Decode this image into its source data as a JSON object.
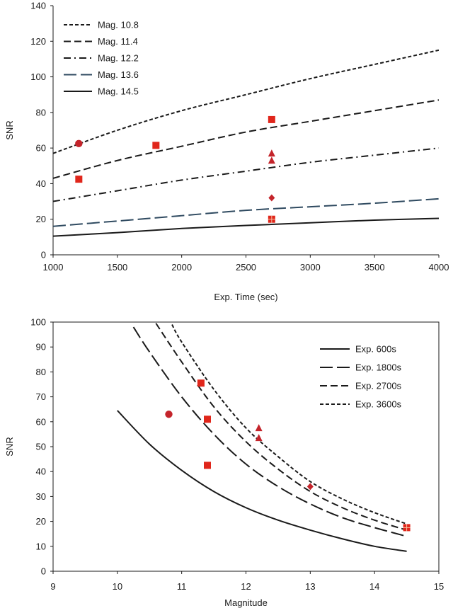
{
  "colors": {
    "marker": "#e0261b",
    "marker_dark": "#c4242b",
    "axis": "#1a1a1a",
    "series_top_long_dash": "#2f4a60"
  },
  "chart_data": [
    {
      "type": "line",
      "title": "",
      "xlabel": "Exp. Time (sec)",
      "ylabel": "SNR",
      "xlim": [
        1000,
        4000
      ],
      "ylim": [
        0,
        140
      ],
      "xticks": [
        "1000",
        "1500",
        "2000",
        "2500",
        "3000",
        "3500",
        "4000"
      ],
      "yticks": [
        "0",
        "20",
        "40",
        "60",
        "80",
        "100",
        "120",
        "140"
      ],
      "grid": false,
      "legend_position": "top-left",
      "series": [
        {
          "name": "Mag. 10.8",
          "dash": "short-dash",
          "x": [
            1000,
            1500,
            2000,
            2500,
            3000,
            3500,
            4000
          ],
          "y": [
            57,
            70,
            81,
            90,
            99,
            107,
            115
          ]
        },
        {
          "name": "Mag. 11.4",
          "dash": "dash",
          "x": [
            1000,
            1500,
            2000,
            2500,
            3000,
            3500,
            4000
          ],
          "y": [
            43,
            53,
            61,
            69,
            75,
            81,
            87
          ]
        },
        {
          "name": "Mag. 12.2",
          "dash": "dash-dot",
          "x": [
            1000,
            1500,
            2000,
            2500,
            3000,
            3500,
            4000
          ],
          "y": [
            30,
            36,
            42,
            47,
            52,
            56,
            60
          ]
        },
        {
          "name": "Mag. 13.6",
          "dash": "long-dash",
          "x": [
            1000,
            1500,
            2000,
            2500,
            3000,
            3500,
            4000
          ],
          "y": [
            16,
            19,
            22,
            25,
            27,
            29,
            31.5
          ]
        },
        {
          "name": "Mag. 14.5",
          "dash": "solid",
          "x": [
            1000,
            1500,
            2000,
            2500,
            3000,
            3500,
            4000
          ],
          "y": [
            10.5,
            12.5,
            14.8,
            16.5,
            18,
            19.5,
            20.5
          ]
        }
      ],
      "markers": [
        {
          "shape": "circle",
          "x": 1200,
          "y": 62.5
        },
        {
          "shape": "square",
          "x": 1200,
          "y": 42.5
        },
        {
          "shape": "square",
          "x": 1800,
          "y": 61.5
        },
        {
          "shape": "square",
          "x": 2700,
          "y": 76
        },
        {
          "shape": "triangle",
          "x": 2700,
          "y": 57
        },
        {
          "shape": "triangle",
          "x": 2700,
          "y": 53
        },
        {
          "shape": "diamond",
          "x": 2700,
          "y": 32
        },
        {
          "shape": "square-cross",
          "x": 2700,
          "y": 20
        }
      ]
    },
    {
      "type": "line",
      "title": "",
      "xlabel": "Magnitude",
      "ylabel": "SNR",
      "xlim": [
        9,
        15
      ],
      "ylim": [
        0,
        100
      ],
      "xticks": [
        "9",
        "10",
        "11",
        "12",
        "13",
        "14",
        "15"
      ],
      "yticks": [
        "0",
        "10",
        "20",
        "30",
        "40",
        "50",
        "60",
        "70",
        "80",
        "90",
        "100"
      ],
      "grid": false,
      "legend_position": "top-right",
      "series": [
        {
          "name": "Exp. 600s",
          "dash": "solid",
          "x": [
            10,
            10.5,
            11,
            11.5,
            12,
            12.5,
            13,
            13.5,
            14,
            14.5
          ],
          "y": [
            64.5,
            51,
            40.5,
            32,
            25.5,
            20.5,
            16.5,
            13,
            10,
            8
          ]
        },
        {
          "name": "Exp. 1800s",
          "dash": "long-dash",
          "x": [
            10.25,
            10.5,
            11,
            11.5,
            12,
            12.5,
            13,
            13.5,
            14,
            14.5
          ],
          "y": [
            98,
            88,
            70,
            55,
            43,
            34,
            27,
            21.5,
            17.5,
            14
          ]
        },
        {
          "name": "Exp. 2700s",
          "dash": "dash",
          "x": [
            10.6,
            11,
            11.5,
            12,
            12.5,
            13,
            13.5,
            14,
            14.5
          ],
          "y": [
            99.5,
            84,
            66,
            52,
            41,
            32,
            25.5,
            20.5,
            16.5
          ]
        },
        {
          "name": "Exp. 3600s",
          "dash": "short-dash",
          "x": [
            10.85,
            11,
            11.5,
            12,
            12.5,
            13,
            13.5,
            14,
            14.5
          ],
          "y": [
            99,
            92,
            73,
            57.5,
            46,
            36,
            29,
            23.5,
            19
          ]
        }
      ],
      "markers": [
        {
          "shape": "circle",
          "x": 10.8,
          "y": 63
        },
        {
          "shape": "square",
          "x": 11.3,
          "y": 75.5
        },
        {
          "shape": "square",
          "x": 11.4,
          "y": 61
        },
        {
          "shape": "square",
          "x": 11.4,
          "y": 42.5
        },
        {
          "shape": "triangle",
          "x": 12.2,
          "y": 57.5
        },
        {
          "shape": "triangle",
          "x": 12.2,
          "y": 53.5
        },
        {
          "shape": "diamond",
          "x": 13,
          "y": 34
        },
        {
          "shape": "square-cross",
          "x": 14.5,
          "y": 17.5
        }
      ]
    }
  ]
}
